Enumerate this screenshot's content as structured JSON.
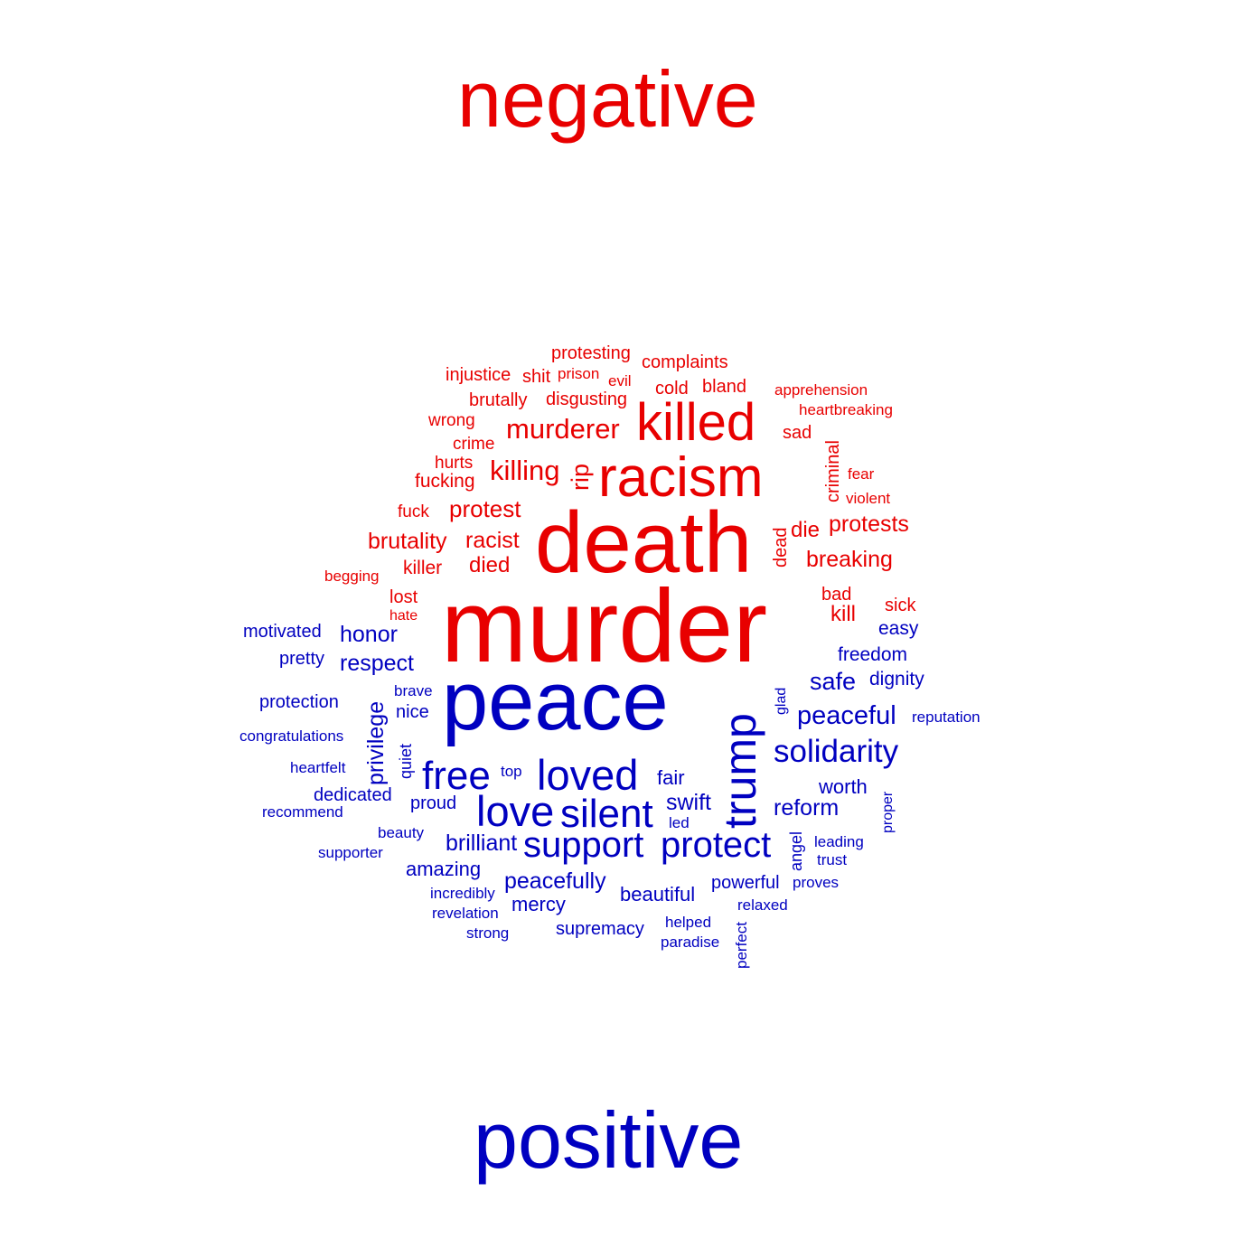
{
  "colors": {
    "negative": "#e80000",
    "positive": "#0000c0"
  },
  "labels": {
    "negative": "negative",
    "positive": "positive"
  },
  "negative_words": [
    "protesting",
    "complaints",
    "injustice",
    "shit",
    "prison",
    "evil",
    "cold",
    "bland",
    "apprehension",
    "brutally",
    "disgusting",
    "heartbreaking",
    "wrong",
    "killed",
    "murderer",
    "sad",
    "criminal",
    "crime",
    "hurts",
    "killing",
    "rip",
    "racism",
    "fear",
    "fucking",
    "violent",
    "fuck",
    "protest",
    "die",
    "protests",
    "dead",
    "death",
    "brutality",
    "racist",
    "breaking",
    "killer",
    "died",
    "begging",
    "lost",
    "bad",
    "sick",
    "murder",
    "hate",
    "kill"
  ],
  "positive_words": [
    "motivated",
    "honor",
    "easy",
    "pretty",
    "respect",
    "freedom",
    "safe",
    "dignity",
    "brave",
    "glad",
    "peace",
    "protection",
    "nice",
    "peaceful",
    "reputation",
    "congratulations",
    "privilege",
    "trump",
    "solidarity",
    "quiet",
    "heartfelt",
    "top",
    "free",
    "loved",
    "fair",
    "worth",
    "dedicated",
    "proud",
    "swift",
    "proper",
    "recommend",
    "love",
    "silent",
    "reform",
    "led",
    "beauty",
    "angel",
    "leading",
    "support",
    "protect",
    "supporter",
    "brilliant",
    "trust",
    "amazing",
    "peacefully",
    "powerful",
    "proves",
    "incredibly",
    "beautiful",
    "mercy",
    "revelation",
    "relaxed",
    "helped",
    "strong",
    "supremacy",
    "perfect",
    "paradise"
  ]
}
